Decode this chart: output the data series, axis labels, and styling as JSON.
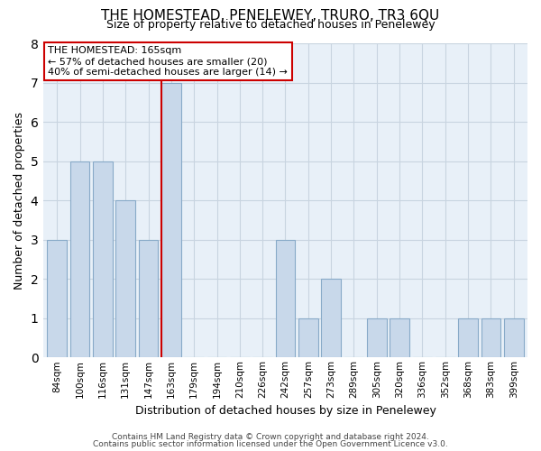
{
  "title": "THE HOMESTEAD, PENELEWEY, TRURO, TR3 6QU",
  "subtitle": "Size of property relative to detached houses in Penelewey",
  "xlabel": "Distribution of detached houses by size in Penelewey",
  "ylabel": "Number of detached properties",
  "bar_labels": [
    "84sqm",
    "100sqm",
    "116sqm",
    "131sqm",
    "147sqm",
    "163sqm",
    "179sqm",
    "194sqm",
    "210sqm",
    "226sqm",
    "242sqm",
    "257sqm",
    "273sqm",
    "289sqm",
    "305sqm",
    "320sqm",
    "336sqm",
    "352sqm",
    "368sqm",
    "383sqm",
    "399sqm"
  ],
  "bar_heights": [
    3,
    5,
    5,
    4,
    3,
    7,
    0,
    0,
    0,
    0,
    3,
    1,
    2,
    0,
    1,
    1,
    0,
    0,
    1,
    1,
    1
  ],
  "bar_color": "#c8d8ea",
  "bar_edgecolor": "#88aac8",
  "highlight_index": 5,
  "highlight_line_color": "#cc0000",
  "ylim": [
    0,
    8
  ],
  "yticks": [
    0,
    1,
    2,
    3,
    4,
    5,
    6,
    7,
    8
  ],
  "annotation_title": "THE HOMESTEAD: 165sqm",
  "annotation_line1": "← 57% of detached houses are smaller (20)",
  "annotation_line2": "40% of semi-detached houses are larger (14) →",
  "annotation_box_edgecolor": "#cc0000",
  "footer_line1": "Contains HM Land Registry data © Crown copyright and database right 2024.",
  "footer_line2": "Contains public sector information licensed under the Open Government Licence v3.0.",
  "background_color": "#ffffff",
  "axes_facecolor": "#e8f0f8",
  "grid_color": "#c8d4e0"
}
